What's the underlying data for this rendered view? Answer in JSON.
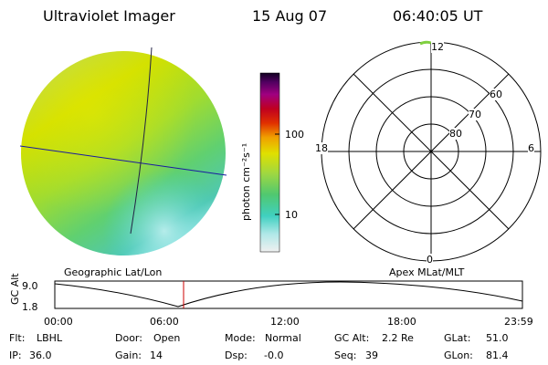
{
  "header": {
    "instrument": "Ultraviolet Imager",
    "date": "15 Aug 07",
    "time": "06:40:05 UT"
  },
  "colorbar": {
    "unit_label": "photon cm⁻²s⁻¹",
    "ticks": [
      "100",
      "10"
    ]
  },
  "polar_plot": {
    "mlt_labels": {
      "top": "12",
      "left": "18",
      "right": "6",
      "bottom": "0"
    },
    "lat_labels": [
      "60",
      "70",
      "80"
    ]
  },
  "image_panel": {
    "caption": "Geographic Lat/Lon"
  },
  "polar_caption": "Apex MLat/MLT",
  "orbit_plot": {
    "ylabel": "GC Alt",
    "y_ticks": [
      "9.0",
      "1.8"
    ],
    "x_ticks": [
      "00:00",
      "06:00",
      "12:00",
      "18:00",
      "23:59"
    ]
  },
  "footer": {
    "flt_label": "Flt:",
    "flt_value": "LBHL",
    "ip_label": "IP:",
    "ip_value": "36.0",
    "door_label": "Door:",
    "door_value": "Open",
    "gain_label": "Gain:",
    "gain_value": "14",
    "mode_label": "Mode:",
    "mode_value": "Normal",
    "dsp_label": "Dsp:",
    "dsp_value": "-0.0",
    "gcalt_label": "GC Alt:",
    "gcalt_value": "2.2 Re",
    "seq_label": "Seq:",
    "seq_value": "39",
    "glat_label": "GLat:",
    "glat_value": "51.0",
    "glon_label": "GLon:",
    "glon_value": "81.4"
  },
  "colors": {
    "meridian_line": "#1a1aa0",
    "orbit_marker": "#cc0000"
  }
}
